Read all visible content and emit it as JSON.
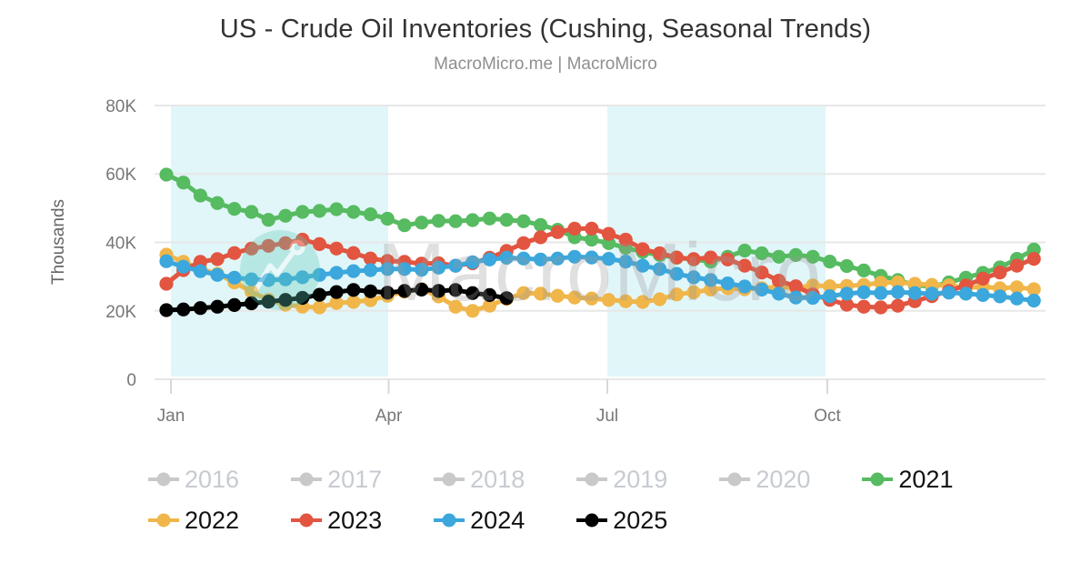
{
  "title": "US - Crude Oil Inventories (Cushing, Seasonal Trends)",
  "subtitle": "MacroMicro.me | MacroMicro",
  "watermark": {
    "text": "MacroMicro",
    "logo": "macromicro-zigzag-logo",
    "logo_color": "#5fc9b8",
    "text_color": "#9a9a9a"
  },
  "y_axis": {
    "label": "Thousands",
    "tick_labels": [
      "80K",
      "60K",
      "40K",
      "20K",
      "0"
    ],
    "tick_values_k": [
      80,
      60,
      40,
      20,
      0
    ]
  },
  "x_axis": {
    "tick_labels": [
      "Jan",
      "Apr",
      "Jul",
      "Oct"
    ]
  },
  "colors": {
    "band": "#e1f6f9",
    "gridline": "#e7e7e7",
    "tick": "#d8d8d8",
    "axis_text": "#777777",
    "disabled_legend": "#c9c9c9"
  },
  "legend": {
    "rows": [
      [
        {
          "label": "2016",
          "color": "#c9c9c9",
          "active": false
        },
        {
          "label": "2017",
          "color": "#c9c9c9",
          "active": false
        },
        {
          "label": "2018",
          "color": "#c9c9c9",
          "active": false
        },
        {
          "label": "2019",
          "color": "#c9c9c9",
          "active": false
        },
        {
          "label": "2020",
          "color": "#c9c9c9",
          "active": false
        },
        {
          "label": "2021",
          "color": "#57bb61",
          "active": true
        }
      ],
      [
        {
          "label": "2022",
          "color": "#f0b64a",
          "active": true
        },
        {
          "label": "2023",
          "color": "#e25540",
          "active": true
        },
        {
          "label": "2024",
          "color": "#3ba7dc",
          "active": true
        },
        {
          "label": "2025",
          "color": "#000000",
          "active": true
        }
      ]
    ]
  },
  "chart_data": {
    "type": "line",
    "title": "US - Crude Oil Inventories (Cushing, Seasonal Trends)",
    "subtitle": "MacroMicro.me | MacroMicro",
    "xlabel": "",
    "ylabel": "Thousands",
    "ylim_k": [
      0,
      80
    ],
    "values_unit": "K on axis (thousand barrels x1000), weekly points Jan-Dec",
    "x_unit": "week_of_year",
    "x_tick_labels": [
      "Jan",
      "Apr",
      "Jul",
      "Oct"
    ],
    "grid": true,
    "legend_position": "bottom",
    "plot_bands_months": [
      [
        "Jan",
        "Apr"
      ],
      [
        "Jul",
        "Oct"
      ]
    ],
    "series": [
      {
        "name": "2016",
        "color": "#c9c9c9",
        "visible": false,
        "values": []
      },
      {
        "name": "2017",
        "color": "#c9c9c9",
        "visible": false,
        "values": []
      },
      {
        "name": "2018",
        "color": "#c9c9c9",
        "visible": false,
        "values": []
      },
      {
        "name": "2019",
        "color": "#c9c9c9",
        "visible": false,
        "values": []
      },
      {
        "name": "2020",
        "color": "#c9c9c9",
        "visible": false,
        "values": []
      },
      {
        "name": "2021",
        "color": "#57bb61",
        "visible": true,
        "values": [
          59.8,
          57.5,
          53.7,
          51.5,
          49.8,
          48.9,
          46.6,
          47.8,
          48.9,
          49.2,
          49.7,
          48.9,
          48.2,
          46.9,
          45.0,
          45.8,
          46.3,
          46.2,
          46.5,
          47.0,
          46.6,
          46.2,
          45.1,
          43.7,
          41.5,
          40.8,
          39.8,
          38.4,
          37.2,
          36.3,
          35.5,
          35.0,
          34.4,
          35.8,
          37.6,
          36.8,
          35.8,
          36.3,
          35.8,
          34.4,
          33.1,
          31.8,
          30.2,
          29.0,
          27.5,
          27.1,
          28.3,
          29.7,
          31.1,
          32.7,
          35.2,
          37.9
        ]
      },
      {
        "name": "2022",
        "color": "#f0b64a",
        "visible": true,
        "values": [
          36.4,
          34.3,
          32.2,
          30.8,
          28.3,
          25.6,
          23.2,
          21.8,
          21.2,
          21.0,
          22.3,
          22.6,
          23.1,
          24.4,
          25.6,
          26.3,
          24.2,
          21.2,
          20.0,
          21.5,
          23.5,
          25.2,
          25.0,
          24.4,
          23.9,
          23.6,
          23.2,
          22.8,
          22.6,
          23.4,
          24.8,
          25.4,
          26.2,
          26.6,
          26.3,
          26.6,
          27.0,
          26.7,
          27.4,
          27.2,
          27.3,
          27.6,
          28.2,
          28.3,
          27.9,
          27.6,
          27.4,
          26.8,
          27.0,
          26.6,
          26.9,
          26.3
        ]
      },
      {
        "name": "2023",
        "color": "#e25540",
        "visible": true,
        "values": [
          27.9,
          31.9,
          34.3,
          35.1,
          36.9,
          38.2,
          39.0,
          39.8,
          40.8,
          39.5,
          38.2,
          36.9,
          35.3,
          34.6,
          34.3,
          33.8,
          33.9,
          33.2,
          33.9,
          35.5,
          37.5,
          39.8,
          41.5,
          43.0,
          44.0,
          44.0,
          42.5,
          40.8,
          38.0,
          36.8,
          35.6,
          35.1,
          35.6,
          35.0,
          33.2,
          31.2,
          28.8,
          27.2,
          24.8,
          23.2,
          21.8,
          21.2,
          21.0,
          21.5,
          22.8,
          24.3,
          25.8,
          27.4,
          29.4,
          31.2,
          33.2,
          35.2
        ]
      },
      {
        "name": "2024",
        "color": "#3ba7dc",
        "visible": true,
        "values": [
          34.5,
          32.9,
          31.6,
          30.5,
          29.7,
          29.2,
          29.0,
          29.2,
          29.8,
          30.5,
          31.1,
          31.6,
          31.9,
          32.2,
          32.2,
          32.0,
          32.6,
          33.2,
          34.2,
          35.0,
          35.5,
          35.3,
          35.0,
          35.3,
          35.8,
          35.6,
          35.2,
          34.4,
          33.2,
          32.2,
          30.8,
          29.8,
          29.0,
          28.0,
          27.1,
          26.2,
          25.0,
          23.9,
          23.8,
          24.3,
          25.0,
          25.4,
          25.2,
          25.5,
          25.2,
          25.0,
          25.3,
          25.0,
          24.6,
          24.2,
          23.6,
          23.0
        ]
      },
      {
        "name": "2025",
        "color": "#000000",
        "visible": true,
        "values": [
          20.2,
          20.4,
          20.8,
          21.2,
          21.7,
          22.2,
          22.7,
          23.2,
          23.8,
          24.7,
          25.5,
          26.1,
          25.7,
          25.3,
          25.8,
          26.2,
          25.8,
          26.1,
          25.2,
          24.6,
          23.7
        ]
      }
    ]
  }
}
